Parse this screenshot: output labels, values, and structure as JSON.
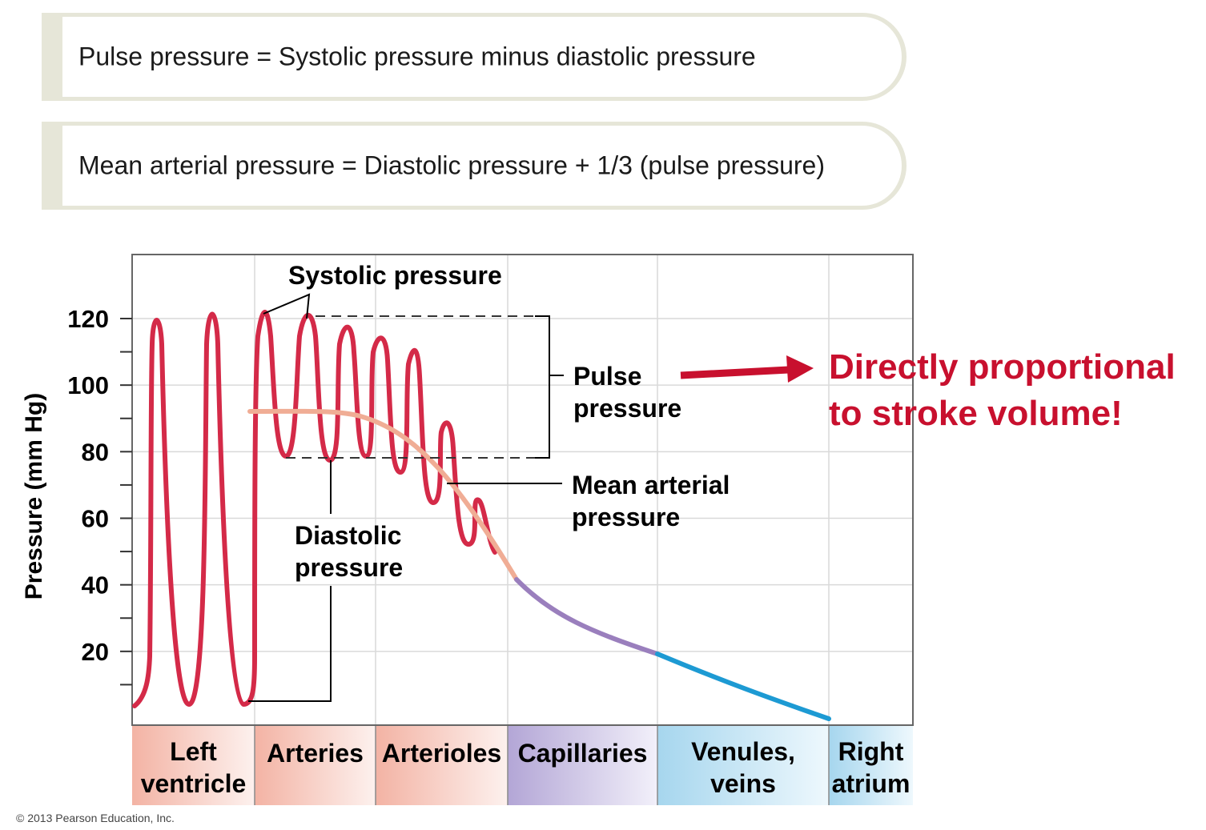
{
  "formulas": {
    "pulse": "Pulse pressure = Systolic pressure minus diastolic pressure",
    "mean": "Mean arterial pressure = Diastolic pressure + 1/3 (pulse pressure)"
  },
  "callout": {
    "line1": "Directly proportional",
    "line2": "to stroke volume!",
    "color": "#c8102e"
  },
  "copyright": "© 2013 Pearson Education, Inc.",
  "chart_data": {
    "type": "line",
    "ylabel": "Pressure (mm Hg)",
    "xlabel": "",
    "ylim": [
      0,
      125
    ],
    "yticks": [
      20,
      40,
      60,
      80,
      100,
      120
    ],
    "grid": true,
    "regions": [
      {
        "lines": [
          "Left",
          "ventricle"
        ],
        "color": "#f3b3a4"
      },
      {
        "lines": [
          "Arteries"
        ],
        "color": "#f3b3a4"
      },
      {
        "lines": [
          "Arterioles"
        ],
        "color": "#f3b3a4"
      },
      {
        "lines": [
          "Capillaries"
        ],
        "color": "#b3a6d6"
      },
      {
        "lines": [
          "Venules,",
          "veins"
        ],
        "color": "#a6d6ee"
      },
      {
        "lines": [
          "Right",
          "atrium"
        ],
        "color": "#a6d6ee"
      }
    ],
    "series": [
      {
        "name": "",
        "color": "#d42a48",
        "description_values": "left ventricle oscillates 5 to 121 mm Hg; arteries 79-120; arterioles damped to 53-65"
      },
      {
        "name": "",
        "color": "#f0ad95",
        "values_region": "arteries-arterioles",
        "start": 93,
        "end": 41
      },
      {
        "name": "",
        "color": "#9a7fbd",
        "values_region": "capillaries",
        "start": 41,
        "end": 20
      },
      {
        "name": "",
        "color": "#1d9ad3",
        "values_region": "venules-veins",
        "start": 20,
        "end": 2
      }
    ],
    "annotations": {
      "systolic": "Systolic pressure",
      "diastolic": [
        "Diastolic",
        "pressure"
      ],
      "pulse": [
        "Pulse",
        "pressure"
      ],
      "mean": [
        "Mean arterial",
        "pressure"
      ]
    }
  }
}
